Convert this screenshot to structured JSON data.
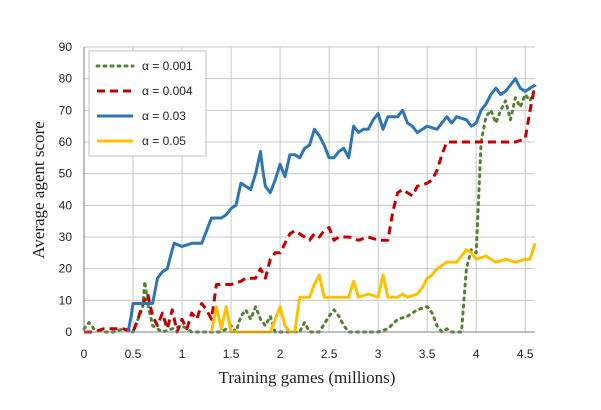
{
  "chart_data": {
    "type": "line",
    "xlabel": "Training games (millions)",
    "ylabel": "Average agent score",
    "xlim": [
      0,
      4.6
    ],
    "ylim": [
      0,
      90
    ],
    "x_ticks": [
      0,
      0.5,
      1,
      1.5,
      2,
      2.5,
      3,
      3.5,
      4,
      4.5
    ],
    "x_tick_labels": [
      "0",
      "0.5",
      "1",
      "1.5",
      "2",
      "2.5",
      "3",
      "3.5",
      "4",
      "4.5"
    ],
    "y_ticks": [
      0,
      10,
      20,
      30,
      40,
      50,
      60,
      70,
      80,
      90
    ],
    "y_tick_labels": [
      "0",
      "10",
      "20",
      "30",
      "40",
      "50",
      "60",
      "70",
      "80",
      "90"
    ],
    "grid": "vertical and horizontal",
    "legend_position": "top-left",
    "series": [
      {
        "name": "α = 0.001",
        "color": "#548235",
        "style": "dotted",
        "points": [
          [
            0,
            1
          ],
          [
            0.05,
            3
          ],
          [
            0.1,
            1
          ],
          [
            0.2,
            0
          ],
          [
            0.3,
            0
          ],
          [
            0.4,
            1
          ],
          [
            0.5,
            0
          ],
          [
            0.55,
            4
          ],
          [
            0.6,
            8
          ],
          [
            0.62,
            16
          ],
          [
            0.65,
            9
          ],
          [
            0.7,
            2
          ],
          [
            0.8,
            0
          ],
          [
            0.9,
            1
          ],
          [
            1.0,
            2
          ],
          [
            1.1,
            0
          ],
          [
            1.2,
            0
          ],
          [
            1.3,
            0
          ],
          [
            1.4,
            0
          ],
          [
            1.5,
            2
          ],
          [
            1.55,
            0
          ],
          [
            1.6,
            5
          ],
          [
            1.65,
            7
          ],
          [
            1.7,
            4
          ],
          [
            1.75,
            8
          ],
          [
            1.8,
            4
          ],
          [
            1.85,
            2
          ],
          [
            1.9,
            5
          ],
          [
            1.95,
            0
          ],
          [
            2.0,
            0
          ],
          [
            2.1,
            0
          ],
          [
            2.2,
            0
          ],
          [
            2.25,
            3
          ],
          [
            2.3,
            0
          ],
          [
            2.4,
            0
          ],
          [
            2.5,
            5
          ],
          [
            2.55,
            7
          ],
          [
            2.6,
            5
          ],
          [
            2.65,
            2
          ],
          [
            2.7,
            0
          ],
          [
            2.8,
            0
          ],
          [
            2.9,
            0
          ],
          [
            3.0,
            0
          ],
          [
            3.1,
            1
          ],
          [
            3.2,
            4
          ],
          [
            3.3,
            5
          ],
          [
            3.4,
            7
          ],
          [
            3.5,
            8
          ],
          [
            3.55,
            6
          ],
          [
            3.6,
            2
          ],
          [
            3.65,
            0
          ],
          [
            3.7,
            1
          ],
          [
            3.75,
            0
          ],
          [
            3.8,
            0
          ],
          [
            3.85,
            0
          ],
          [
            3.9,
            20
          ],
          [
            3.95,
            26
          ],
          [
            4.0,
            25
          ],
          [
            4.05,
            60
          ],
          [
            4.1,
            68
          ],
          [
            4.15,
            70
          ],
          [
            4.2,
            66
          ],
          [
            4.25,
            70
          ],
          [
            4.3,
            73
          ],
          [
            4.35,
            67
          ],
          [
            4.4,
            74
          ],
          [
            4.45,
            71
          ],
          [
            4.5,
            75
          ],
          [
            4.55,
            73
          ],
          [
            4.6,
            77
          ]
        ]
      },
      {
        "name": "α = 0.004",
        "color": "#C00000",
        "style": "dashed",
        "points": [
          [
            0,
            0
          ],
          [
            0.1,
            0
          ],
          [
            0.2,
            1
          ],
          [
            0.3,
            1
          ],
          [
            0.4,
            1
          ],
          [
            0.5,
            0
          ],
          [
            0.55,
            4
          ],
          [
            0.6,
            9
          ],
          [
            0.65,
            12
          ],
          [
            0.7,
            5
          ],
          [
            0.75,
            2
          ],
          [
            0.8,
            6
          ],
          [
            0.85,
            1
          ],
          [
            0.9,
            7
          ],
          [
            0.95,
            0
          ],
          [
            1.0,
            4
          ],
          [
            1.05,
            1
          ],
          [
            1.1,
            6
          ],
          [
            1.15,
            4
          ],
          [
            1.2,
            9
          ],
          [
            1.25,
            7
          ],
          [
            1.3,
            4
          ],
          [
            1.35,
            15
          ],
          [
            1.5,
            15
          ],
          [
            1.6,
            16
          ],
          [
            1.65,
            17
          ],
          [
            1.75,
            17
          ],
          [
            1.8,
            20
          ],
          [
            1.85,
            17
          ],
          [
            1.9,
            23
          ],
          [
            1.95,
            25
          ],
          [
            2.0,
            25
          ],
          [
            2.05,
            28
          ],
          [
            2.1,
            31
          ],
          [
            2.15,
            32
          ],
          [
            2.2,
            31
          ],
          [
            2.3,
            29
          ],
          [
            2.35,
            31
          ],
          [
            2.4,
            30
          ],
          [
            2.45,
            32
          ],
          [
            2.5,
            33
          ],
          [
            2.55,
            29
          ],
          [
            2.6,
            30
          ],
          [
            2.7,
            30
          ],
          [
            2.8,
            29
          ],
          [
            2.9,
            30
          ],
          [
            3.0,
            29
          ],
          [
            3.1,
            29
          ],
          [
            3.15,
            38
          ],
          [
            3.2,
            44
          ],
          [
            3.25,
            45
          ],
          [
            3.3,
            44
          ],
          [
            3.35,
            43
          ],
          [
            3.4,
            46
          ],
          [
            3.5,
            47
          ],
          [
            3.55,
            48
          ],
          [
            3.6,
            51
          ],
          [
            3.65,
            56
          ],
          [
            3.7,
            60
          ],
          [
            3.8,
            60
          ],
          [
            3.9,
            60
          ],
          [
            4.0,
            60
          ],
          [
            4.1,
            60
          ],
          [
            4.2,
            60
          ],
          [
            4.3,
            60
          ],
          [
            4.4,
            60
          ],
          [
            4.5,
            61
          ],
          [
            4.55,
            70
          ],
          [
            4.6,
            78
          ]
        ]
      },
      {
        "name": "α = 0.03",
        "color": "#2E75B6",
        "style": "solid",
        "points": [
          [
            0.45,
            0
          ],
          [
            0.48,
            5
          ],
          [
            0.5,
            9
          ],
          [
            0.6,
            9
          ],
          [
            0.7,
            9
          ],
          [
            0.75,
            17
          ],
          [
            0.8,
            19
          ],
          [
            0.85,
            20
          ],
          [
            0.9,
            26
          ],
          [
            0.92,
            28
          ],
          [
            1.0,
            27
          ],
          [
            1.1,
            28
          ],
          [
            1.2,
            28
          ],
          [
            1.25,
            32
          ],
          [
            1.3,
            36
          ],
          [
            1.4,
            36
          ],
          [
            1.45,
            37
          ],
          [
            1.5,
            39
          ],
          [
            1.55,
            40
          ],
          [
            1.6,
            47
          ],
          [
            1.65,
            46
          ],
          [
            1.7,
            45
          ],
          [
            1.75,
            50
          ],
          [
            1.8,
            57
          ],
          [
            1.82,
            52
          ],
          [
            1.85,
            46
          ],
          [
            1.9,
            44
          ],
          [
            1.95,
            48
          ],
          [
            2.0,
            53
          ],
          [
            2.05,
            49
          ],
          [
            2.1,
            56
          ],
          [
            2.15,
            56
          ],
          [
            2.2,
            55
          ],
          [
            2.25,
            58
          ],
          [
            2.3,
            59
          ],
          [
            2.35,
            64
          ],
          [
            2.4,
            62
          ],
          [
            2.45,
            59
          ],
          [
            2.5,
            55
          ],
          [
            2.55,
            55
          ],
          [
            2.6,
            57
          ],
          [
            2.65,
            58
          ],
          [
            2.7,
            55
          ],
          [
            2.75,
            65
          ],
          [
            2.8,
            63
          ],
          [
            2.85,
            64
          ],
          [
            2.9,
            64
          ],
          [
            2.95,
            67
          ],
          [
            3.0,
            69
          ],
          [
            3.05,
            64
          ],
          [
            3.1,
            68
          ],
          [
            3.2,
            68
          ],
          [
            3.25,
            70
          ],
          [
            3.3,
            66
          ],
          [
            3.35,
            65
          ],
          [
            3.4,
            63
          ],
          [
            3.5,
            65
          ],
          [
            3.6,
            64
          ],
          [
            3.7,
            68
          ],
          [
            3.75,
            66
          ],
          [
            3.8,
            68
          ],
          [
            3.9,
            67
          ],
          [
            3.95,
            65
          ],
          [
            4.0,
            66
          ],
          [
            4.05,
            70
          ],
          [
            4.1,
            72
          ],
          [
            4.15,
            75
          ],
          [
            4.2,
            77
          ],
          [
            4.25,
            75
          ],
          [
            4.3,
            76
          ],
          [
            4.35,
            78
          ],
          [
            4.4,
            80
          ],
          [
            4.45,
            77
          ],
          [
            4.5,
            76
          ],
          [
            4.55,
            77
          ],
          [
            4.6,
            78
          ]
        ]
      },
      {
        "name": "α = 0.05",
        "color": "#FFC000",
        "style": "solid",
        "points": [
          [
            1.3,
            0
          ],
          [
            1.35,
            8
          ],
          [
            1.4,
            1
          ],
          [
            1.45,
            8
          ],
          [
            1.5,
            0
          ],
          [
            1.9,
            0
          ],
          [
            2.0,
            8
          ],
          [
            2.05,
            2
          ],
          [
            2.1,
            0
          ],
          [
            2.15,
            0
          ],
          [
            2.2,
            11
          ],
          [
            2.3,
            11
          ],
          [
            2.35,
            15
          ],
          [
            2.4,
            18
          ],
          [
            2.45,
            11
          ],
          [
            2.5,
            11
          ],
          [
            2.6,
            11
          ],
          [
            2.7,
            11
          ],
          [
            2.75,
            16
          ],
          [
            2.8,
            11
          ],
          [
            2.9,
            12
          ],
          [
            3.0,
            11
          ],
          [
            3.05,
            18
          ],
          [
            3.1,
            11
          ],
          [
            3.2,
            11
          ],
          [
            3.25,
            12
          ],
          [
            3.3,
            11
          ],
          [
            3.4,
            12
          ],
          [
            3.45,
            14
          ],
          [
            3.5,
            17
          ],
          [
            3.55,
            18
          ],
          [
            3.6,
            20
          ],
          [
            3.7,
            22
          ],
          [
            3.8,
            22
          ],
          [
            3.85,
            24
          ],
          [
            3.9,
            26
          ],
          [
            3.95,
            25
          ],
          [
            4.0,
            23
          ],
          [
            4.1,
            24
          ],
          [
            4.2,
            22
          ],
          [
            4.3,
            23
          ],
          [
            4.4,
            22
          ],
          [
            4.5,
            23
          ],
          [
            4.55,
            23
          ],
          [
            4.6,
            28
          ]
        ]
      }
    ]
  }
}
